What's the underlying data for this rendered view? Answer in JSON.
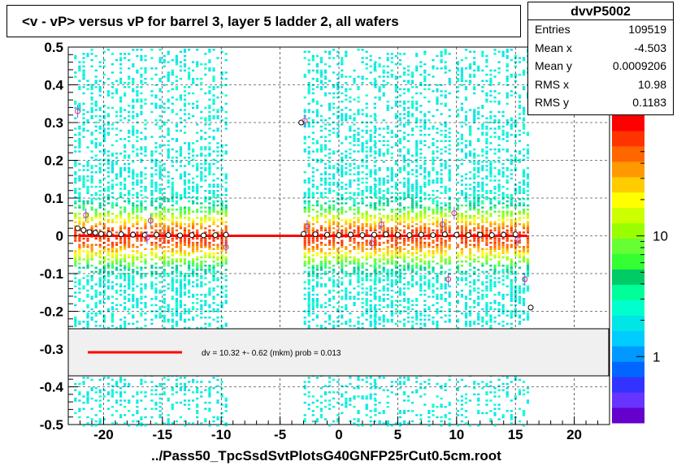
{
  "title": "<v - vP>       versus   vP for barrel 3, layer 5 ladder 2, all wafers",
  "x_title": "../Pass50_TpcSsdSvtPlotsG40GNFP25rCut0.5cm.root",
  "stats": {
    "name": "dvvP5002",
    "rows": [
      {
        "key": "Entries",
        "value": "109519"
      },
      {
        "key": "Mean x",
        "value": "-4.503"
      },
      {
        "key": "Mean y",
        "value": "0.0009206"
      },
      {
        "key": "RMS x",
        "value": "10.98"
      },
      {
        "key": "RMS y",
        "value": "0.1183"
      }
    ]
  },
  "legend": {
    "text": "dv =   10.32 +-  0.62 (mkm) prob = 0.013",
    "color": "#ff0000"
  },
  "chart_data": {
    "type": "heatmap",
    "xlim": [
      -23,
      23
    ],
    "ylim": [
      -0.5,
      0.5
    ],
    "x_ticks": [
      -20,
      -15,
      -10,
      -5,
      0,
      5,
      10,
      15,
      20
    ],
    "x_tick_labels": [
      "-20",
      "-15",
      "-10",
      "-5",
      "0",
      "5",
      "10",
      "15",
      "20"
    ],
    "y_ticks": [
      -0.5,
      -0.4,
      -0.3,
      -0.2,
      -0.1,
      0,
      0.1,
      0.2,
      0.3,
      0.4,
      0.5
    ],
    "y_tick_labels": [
      "-0.5",
      "-0.4",
      "-0.3",
      "-0.2",
      "-0.1",
      "0",
      "0.1",
      "0.2",
      "0.3",
      "0.4",
      "0.5"
    ],
    "z_scale": "log",
    "z_ticks": [
      1,
      10
    ],
    "z_tick_labels": [
      "1",
      "10"
    ],
    "z_top_label": "10",
    "grid": true,
    "occupied_x_ranges": [
      [
        -22.5,
        -16.5
      ],
      [
        -16,
        -9.5
      ],
      [
        -3,
        3
      ],
      [
        3,
        9.5
      ],
      [
        10,
        16
      ]
    ],
    "fit_line": {
      "x": [
        -22,
        16
      ],
      "y": [
        0.0,
        0.0
      ],
      "color": "#ff0000"
    },
    "profile_points": [
      {
        "x": -22.2,
        "y": 0.02
      },
      {
        "x": -21.7,
        "y": 0.015
      },
      {
        "x": -21.2,
        "y": 0.01
      },
      {
        "x": -20.7,
        "y": 0.008
      },
      {
        "x": -20.2,
        "y": 0.005
      },
      {
        "x": -19.5,
        "y": 0.005
      },
      {
        "x": -18.5,
        "y": 0.004
      },
      {
        "x": -17.5,
        "y": 0.003
      },
      {
        "x": -16.5,
        "y": 0.002
      },
      {
        "x": -15.5,
        "y": 0.003
      },
      {
        "x": -14.5,
        "y": 0.002
      },
      {
        "x": -13.5,
        "y": 0.001
      },
      {
        "x": -12.5,
        "y": 0.002
      },
      {
        "x": -11.5,
        "y": 0.001
      },
      {
        "x": -10.5,
        "y": 0.002
      },
      {
        "x": -9.6,
        "y": 0.003
      },
      {
        "x": -3.2,
        "y": 0.3
      },
      {
        "x": -3,
        "y": 0.005
      },
      {
        "x": -2,
        "y": 0.004
      },
      {
        "x": -1,
        "y": 0.003
      },
      {
        "x": 0,
        "y": 0.002
      },
      {
        "x": 1,
        "y": 0.003
      },
      {
        "x": 2,
        "y": 0.002
      },
      {
        "x": 3,
        "y": 0.003
      },
      {
        "x": 4,
        "y": 0.004
      },
      {
        "x": 5,
        "y": 0.003
      },
      {
        "x": 6,
        "y": 0.002
      },
      {
        "x": 7,
        "y": 0.003
      },
      {
        "x": 8,
        "y": 0.002
      },
      {
        "x": 9,
        "y": 0.004
      },
      {
        "x": 10,
        "y": 0.003
      },
      {
        "x": 11,
        "y": 0.002
      },
      {
        "x": 12,
        "y": 0.003
      },
      {
        "x": 13,
        "y": 0.002
      },
      {
        "x": 14,
        "y": 0.003
      },
      {
        "x": 15,
        "y": 0.004
      },
      {
        "x": 16.3,
        "y": -0.19
      }
    ],
    "outlier_points": [
      {
        "x": -22.2,
        "y": 0.33
      },
      {
        "x": -21.5,
        "y": 0.055
      },
      {
        "x": -16,
        "y": 0.04
      },
      {
        "x": -16.3,
        "y": -0.005
      },
      {
        "x": -9.6,
        "y": -0.03
      },
      {
        "x": -2.9,
        "y": 0.305
      },
      {
        "x": -2.7,
        "y": 0.025
      },
      {
        "x": 2.8,
        "y": -0.02
      },
      {
        "x": 3.6,
        "y": 0.03
      },
      {
        "x": 8.8,
        "y": 0.03
      },
      {
        "x": 9.3,
        "y": -0.115
      },
      {
        "x": 9.8,
        "y": 0.06
      },
      {
        "x": 15.2,
        "y": -0.01
      },
      {
        "x": 15.8,
        "y": -0.115
      }
    ]
  }
}
